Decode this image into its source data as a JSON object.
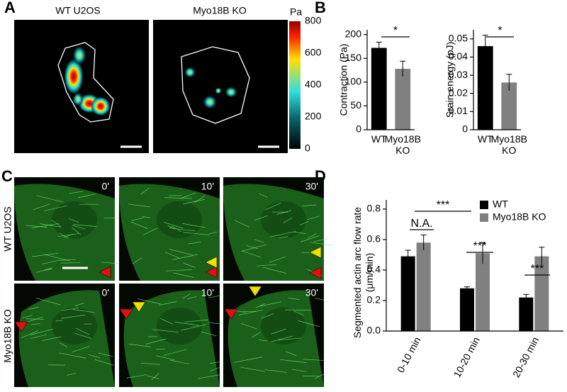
{
  "panel_labels": [
    "A",
    "B",
    "C",
    "D"
  ],
  "panel_a": {
    "titles": [
      "WT U2OS",
      "Myo18B KO"
    ],
    "colorbar": {
      "label": "Pa",
      "ticks": [
        800,
        600,
        400,
        200,
        0
      ]
    }
  },
  "panel_c": {
    "row_labels": [
      "WT U2OS",
      "Myo18B KO"
    ],
    "times": [
      "0'",
      "10'",
      "30'"
    ]
  },
  "chart_data": [
    {
      "type": "bar",
      "ylabel": "Contraction (Pa)",
      "categories": [
        "WT",
        "Myo18B KO"
      ],
      "values": [
        172,
        128
      ],
      "errors": [
        12,
        16
      ],
      "colors": [
        "#000000",
        "#808080"
      ],
      "ylim": [
        0,
        210
      ],
      "yticks": [
        0,
        50,
        100,
        150,
        200
      ],
      "annotations": [
        "*"
      ]
    },
    {
      "type": "bar",
      "ylabel": "Srain energy (pJ)",
      "categories": [
        "WT",
        "Myo18B KO"
      ],
      "values": [
        0.046,
        0.026
      ],
      "errors": [
        0.006,
        0.0045
      ],
      "colors": [
        "#000000",
        "#808080"
      ],
      "ylim": [
        0,
        0.055
      ],
      "yticks": [
        0,
        0.01,
        0.02,
        0.03,
        0.04,
        0.05
      ],
      "annotations": [
        "*"
      ]
    },
    {
      "type": "grouped_bar",
      "ylabel": "Segmented actin arc flow rate (μm/min)",
      "categories": [
        "0-10 min",
        "10-20 min",
        "20-30 min"
      ],
      "series": [
        {
          "name": "WT",
          "color": "#000000",
          "values": [
            0.49,
            0.28,
            0.22
          ],
          "errors": [
            0.04,
            0.01,
            0.02
          ]
        },
        {
          "name": "Myo18B KO",
          "color": "#808080",
          "values": [
            0.58,
            0.51,
            0.49
          ],
          "errors": [
            0.05,
            0.07,
            0.06
          ]
        }
      ],
      "ylim": [
        0,
        0.86
      ],
      "yticks": [
        {
          "value": 0,
          "label": "0.0"
        },
        0.2,
        0.4,
        0.6,
        0.8
      ],
      "annotations": [
        "***",
        "N.A.",
        "***",
        "***"
      ],
      "legend": "upper right"
    }
  ]
}
